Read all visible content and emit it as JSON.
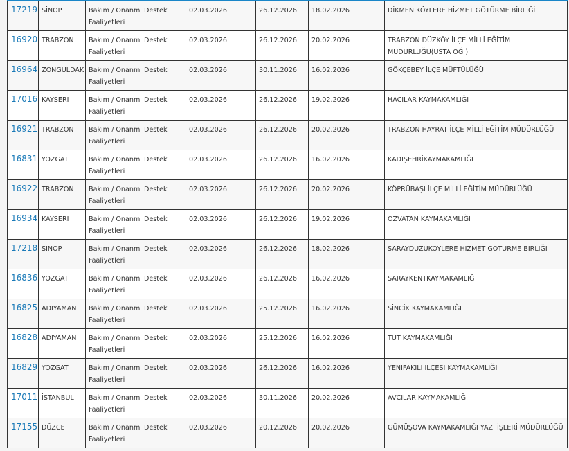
{
  "link_color": "#1a7ab8",
  "header_accent": "#1a86c8",
  "rows": [
    {
      "id": "17219",
      "city": "SİNOP",
      "category": "Bakım / Onanmı Destek Faaliyetleri",
      "date1": "02.03.2026",
      "date2": "26.12.2026",
      "date3": "18.02.2026",
      "institution": "DİKMEN KÖYLERE HİZMET GÖTÜRME BİRLİĞİ"
    },
    {
      "id": "16920",
      "city": "TRABZON",
      "category": "Bakım / Onanmı Destek Faaliyetleri",
      "date1": "02.03.2026",
      "date2": "26.12.2026",
      "date3": "20.02.2026",
      "institution": "TRABZON DÜZKÖY İLÇE MİLLİ EĞİTİM MÜDÜRLÜĞÜ(USTA ÖĞ )"
    },
    {
      "id": "16964",
      "city": "ZONGULDAK",
      "category": "Bakım / Onanmı Destek Faaliyetleri",
      "date1": "02.03.2026",
      "date2": "30.11.2026",
      "date3": "16.02.2026",
      "institution": "GÖKÇEBEY İLÇE MÜFTÜLÜĞÜ"
    },
    {
      "id": "17016",
      "city": "KAYSERİ",
      "category": "Bakım / Onanmı Destek Faaliyetleri",
      "date1": "02.03.2026",
      "date2": "26.12.2026",
      "date3": "19.02.2026",
      "institution": "HACILAR KAYMAKAMLIĞI"
    },
    {
      "id": "16921",
      "city": "TRABZON",
      "category": "Bakım / Onanmı Destek Faaliyetleri",
      "date1": "02.03.2026",
      "date2": "26.12.2026",
      "date3": "20.02.2026",
      "institution": "TRABZON HAYRAT İLÇE MİLLİ EĞİTİM MÜDÜRLÜĞÜ"
    },
    {
      "id": "16831",
      "city": "YOZGAT",
      "category": "Bakım / Onanmı Destek Faaliyetleri",
      "date1": "02.03.2026",
      "date2": "26.12.2026",
      "date3": "16.02.2026",
      "institution": "KADIŞEHRİKAYMAKAMLIĞI"
    },
    {
      "id": "16922",
      "city": "TRABZON",
      "category": "Bakım / Onanmı Destek Faaliyetleri",
      "date1": "02.03.2026",
      "date2": "26.12.2026",
      "date3": "20.02.2026",
      "institution": "KÖPRÜBAŞI İLÇE MİLLİ EĞİTİM MÜDÜRLÜĞÜ"
    },
    {
      "id": "16934",
      "city": "KAYSERİ",
      "category": "Bakım / Onanmı Destek Faaliyetleri",
      "date1": "02.03.2026",
      "date2": "26.12.2026",
      "date3": "19.02.2026",
      "institution": "ÖZVATAN KAYMAKAMLIĞI"
    },
    {
      "id": "17218",
      "city": "SİNOP",
      "category": "Bakım / Onanmı Destek Faaliyetleri",
      "date1": "02.03.2026",
      "date2": "26.12.2026",
      "date3": "18.02.2026",
      "institution": "SARAYDÜZÜKÖYLERE HİZMET GÖTÜRME BİRLİĞİ"
    },
    {
      "id": "16836",
      "city": "YOZGAT",
      "category": "Bakım / Onanmı Destek Faaliyetleri",
      "date1": "02.03.2026",
      "date2": "26.12.2026",
      "date3": "16.02.2026",
      "institution": "SARAYKENTKAYMAKAMLIĞ"
    },
    {
      "id": "16825",
      "city": "ADIYAMAN",
      "category": "Bakım / Onanmı Destek Faaliyetleri",
      "date1": "02.03.2026",
      "date2": "25.12.2026",
      "date3": "16.02.2026",
      "institution": "SİNCİK KAYMAKAMLIĞI"
    },
    {
      "id": "16828",
      "city": "ADIYAMAN",
      "category": "Bakım / Onanmı Destek Faaliyetleri",
      "date1": "02.03.2026",
      "date2": "25.12.2026",
      "date3": "16.02.2026",
      "institution": "TUT KAYMAKAMLIĞI"
    },
    {
      "id": "16829",
      "city": "YOZGAT",
      "category": "Bakım / Onanmı Destek Faaliyetleri",
      "date1": "02.03.2026",
      "date2": "26.12.2026",
      "date3": "16.02.2026",
      "institution": "YENİFAKILI İLÇESİ KAYMAKAMLIĞI"
    },
    {
      "id": "17011",
      "city": "İSTANBUL",
      "category": "Bakım / Onanmı Destek Faaliyetleri",
      "date1": "02.03.2026",
      "date2": "30.11.2026",
      "date3": "20.02.2026",
      "institution": "AVCILAR KAYMAKAMLIĞI"
    },
    {
      "id": "17155",
      "city": "DÜZCE",
      "category": "Bakım / Onanmı Destek Faaliyetleri",
      "date1": "02.03.2026",
      "date2": "20.12.2026",
      "date3": "20.02.2026",
      "institution": "GÜMÜŞOVA KAYMAKAMLIĞI YAZI İŞLERİ MÜDÜRLÜĞÜ"
    }
  ]
}
